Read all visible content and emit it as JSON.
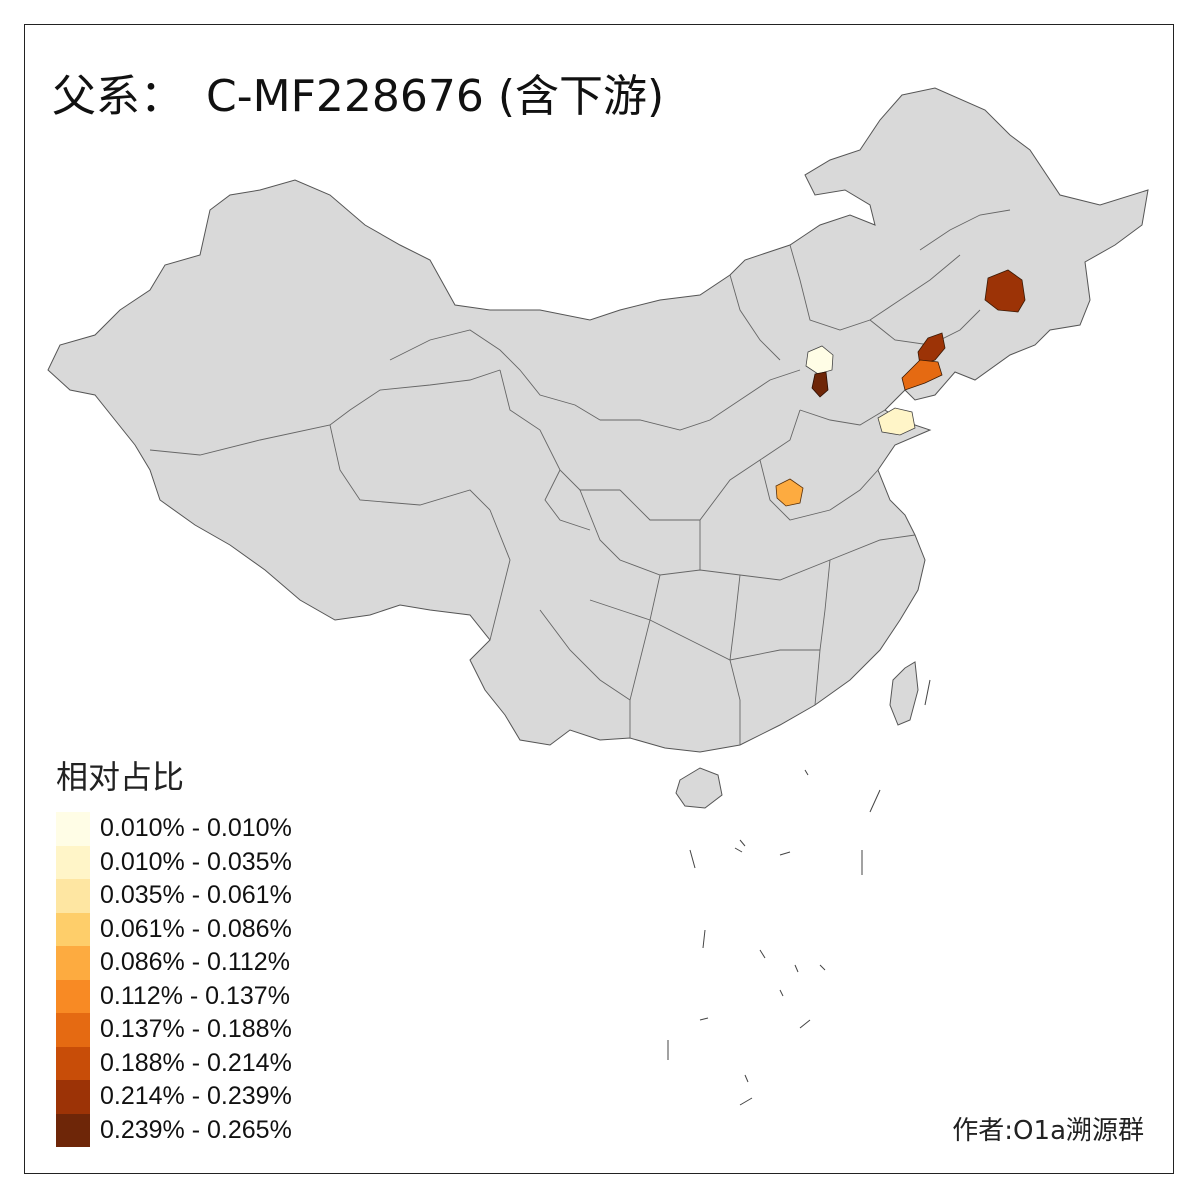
{
  "title": {
    "prefix": "父系：",
    "main": "C-MF228676 (含下游)"
  },
  "legend": {
    "title": "相对占比",
    "items": [
      {
        "label": "0.010% - 0.010%",
        "color": "#fffde6"
      },
      {
        "label": "0.010% - 0.035%",
        "color": "#fff5c8"
      },
      {
        "label": "0.035% - 0.061%",
        "color": "#fee6a2"
      },
      {
        "label": "0.061% - 0.086%",
        "color": "#fece6a"
      },
      {
        "label": "0.086% - 0.112%",
        "color": "#fdab40"
      },
      {
        "label": "0.112% - 0.137%",
        "color": "#f88a24"
      },
      {
        "label": "0.137% - 0.188%",
        "color": "#e56a12"
      },
      {
        "label": "0.188% - 0.214%",
        "color": "#c84d08"
      },
      {
        "label": "0.214% - 0.239%",
        "color": "#9c3306"
      },
      {
        "label": "0.239% - 0.265%",
        "color": "#6e2608"
      }
    ]
  },
  "credit": "作者:O1a溯源群",
  "map": {
    "base_fill": "#d9d9d9",
    "border_color": "#555555",
    "highlighted_regions": [
      {
        "name": "harbin-area",
        "color": "#9c3306"
      },
      {
        "name": "dalian-area",
        "color": "#e56a12"
      },
      {
        "name": "liaoning-north",
        "color": "#9c3306"
      },
      {
        "name": "beijing-area",
        "color": "#fffde6"
      },
      {
        "name": "hebei-south",
        "color": "#6e2608"
      },
      {
        "name": "shandong-peninsula",
        "color": "#fff5c8"
      },
      {
        "name": "henan-area",
        "color": "#fdab40"
      }
    ]
  }
}
